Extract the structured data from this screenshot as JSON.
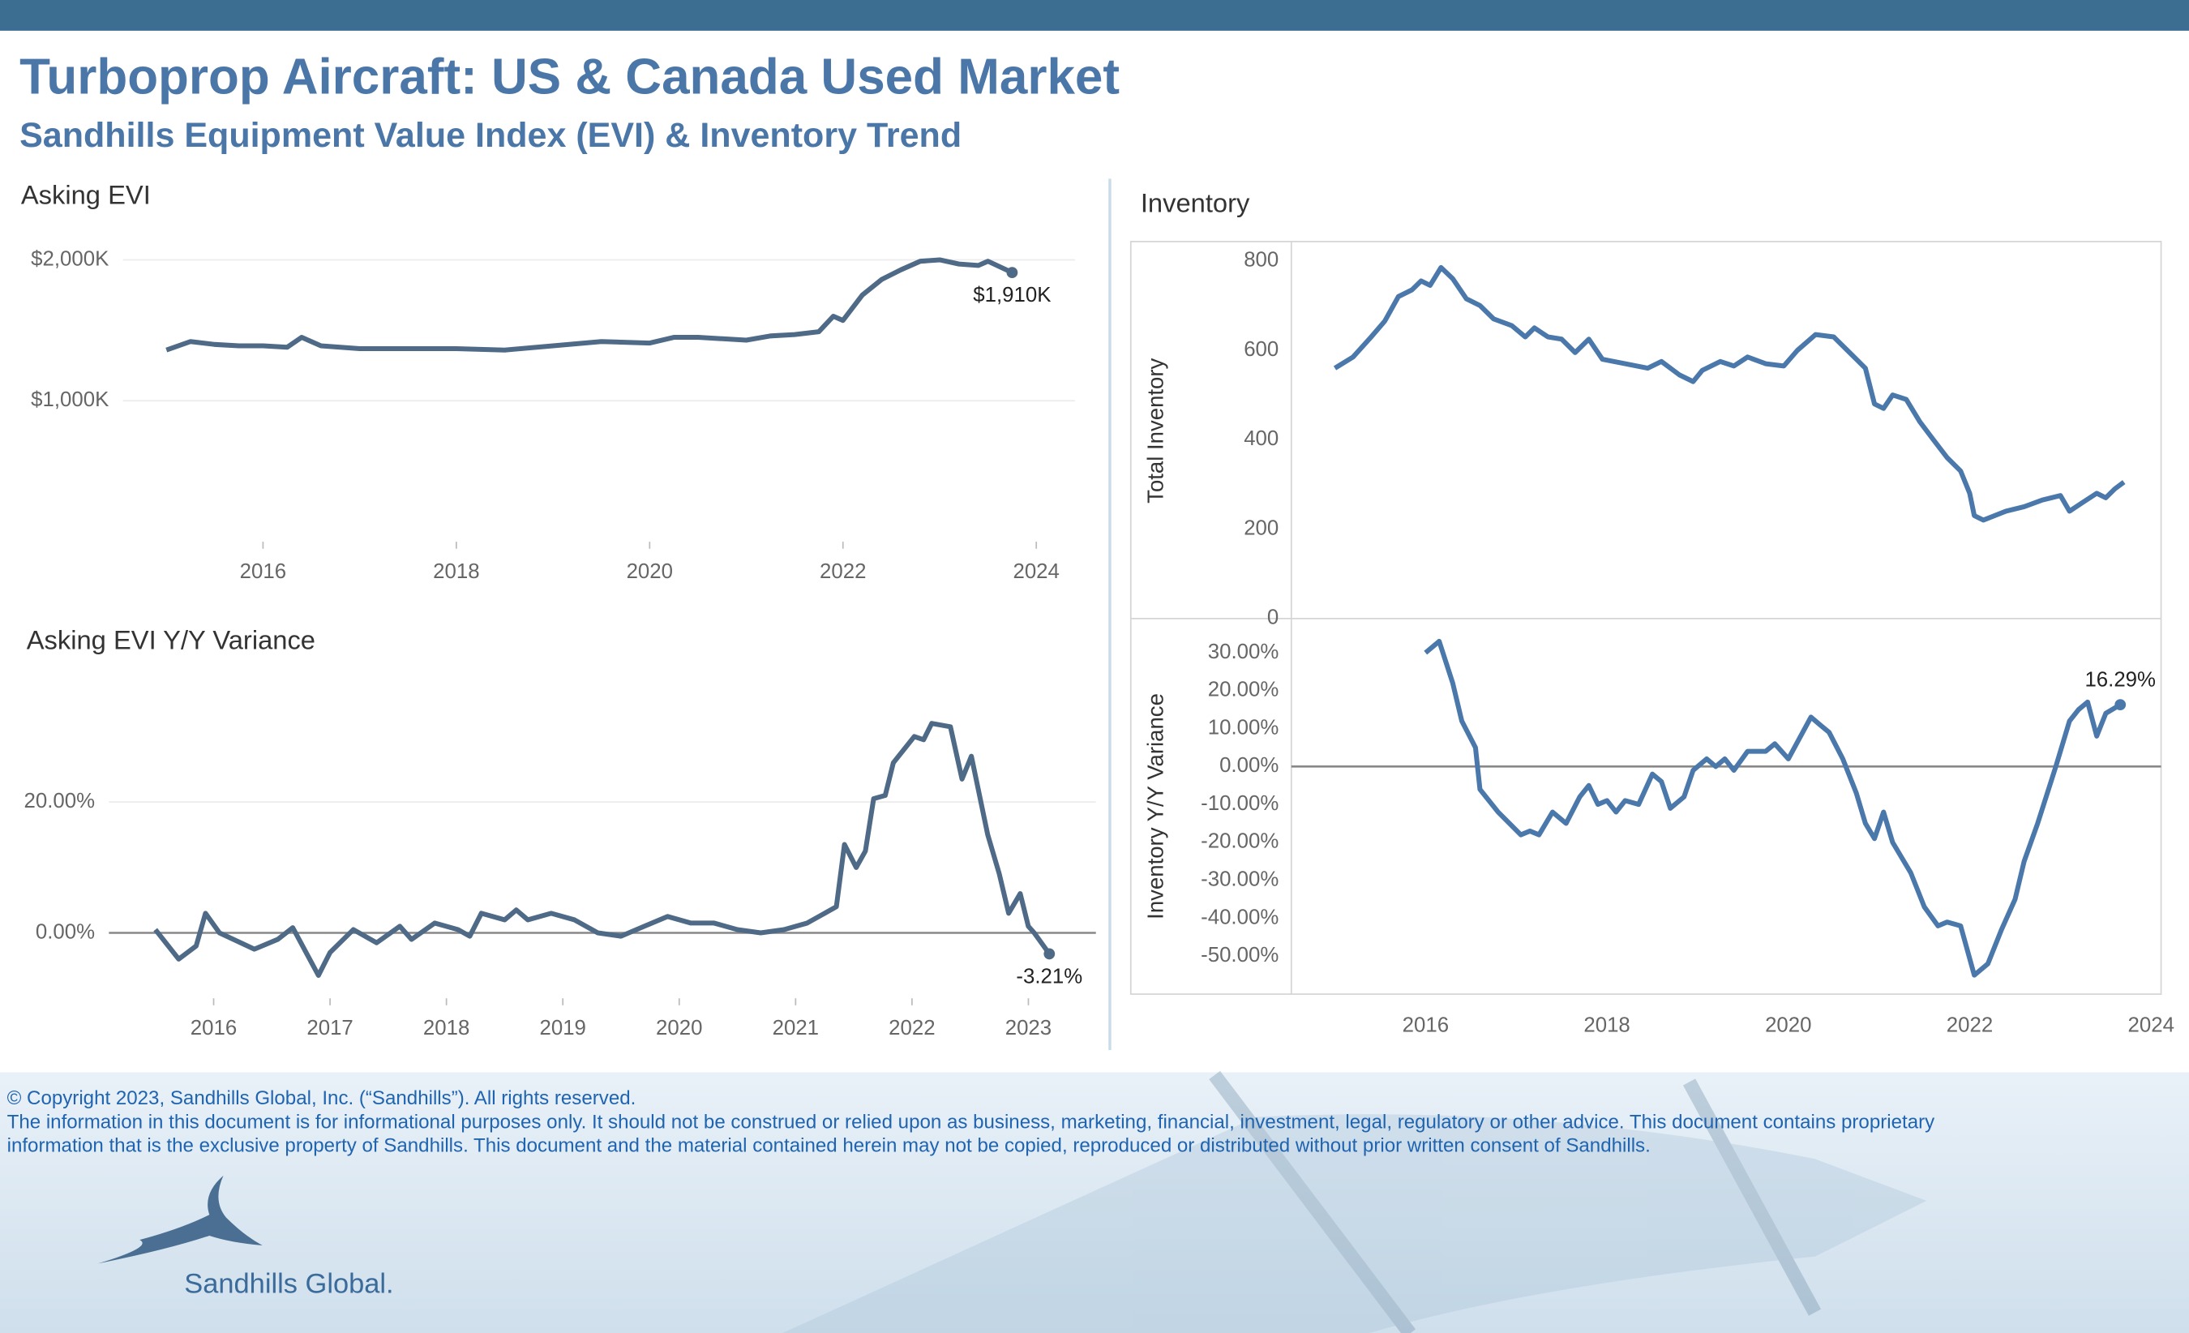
{
  "header": {
    "title": "Turboprop Aircraft:  US & Canada Used Market",
    "subtitle": "Sandhills Equipment Value Index (EVI) & Inventory Trend"
  },
  "chart_data": [
    {
      "type": "line",
      "title": "Asking EVI",
      "color": "#4e6a87",
      "grid": true,
      "x": [
        2015.0,
        2015.25,
        2015.5,
        2015.75,
        2016.0,
        2016.25,
        2016.4,
        2016.6,
        2017.0,
        2017.5,
        2018.0,
        2018.5,
        2019.0,
        2019.5,
        2020.0,
        2020.25,
        2020.5,
        2021.0,
        2021.25,
        2021.5,
        2021.75,
        2021.9,
        2022.0,
        2022.2,
        2022.4,
        2022.6,
        2022.8,
        2023.0,
        2023.2,
        2023.4,
        2023.5,
        2023.75
      ],
      "values": [
        1360,
        1420,
        1400,
        1390,
        1390,
        1380,
        1450,
        1390,
        1370,
        1370,
        1370,
        1360,
        1390,
        1420,
        1410,
        1450,
        1450,
        1430,
        1460,
        1470,
        1490,
        1600,
        1570,
        1750,
        1860,
        1930,
        1990,
        2000,
        1970,
        1960,
        1990,
        1910
      ],
      "value_labels": [
        null,
        null,
        null,
        null,
        null,
        null,
        null,
        null,
        null,
        null,
        null,
        null,
        null,
        null,
        null,
        null,
        null,
        null,
        null,
        null,
        null,
        null,
        null,
        null,
        null,
        null,
        null,
        null,
        null,
        null,
        null,
        "$1,910K"
      ],
      "xlim": [
        2014.55,
        2024.4
      ],
      "xticks": [
        2016,
        2018,
        2020,
        2022,
        2024
      ],
      "ylim": [
        0,
        2100
      ],
      "yticks": [
        {
          "value": 1000,
          "label": "$1,000K"
        },
        {
          "value": 2000,
          "label": "$2,000K"
        }
      ]
    },
    {
      "type": "line",
      "title": "Asking EVI Y/Y Variance",
      "color": "#4e6a87",
      "grid": true,
      "x": [
        2015.5,
        2015.7,
        2015.85,
        2015.93,
        2016.05,
        2016.35,
        2016.55,
        2016.68,
        2016.9,
        2017.0,
        2017.2,
        2017.4,
        2017.6,
        2017.7,
        2017.9,
        2018.1,
        2018.2,
        2018.3,
        2018.5,
        2018.6,
        2018.7,
        2018.9,
        2019.1,
        2019.3,
        2019.5,
        2019.7,
        2019.9,
        2020.1,
        2020.3,
        2020.5,
        2020.7,
        2020.9,
        2021.1,
        2021.35,
        2021.42,
        2021.52,
        2021.6,
        2021.67,
        2021.77,
        2021.84,
        2022.02,
        2022.1,
        2022.17,
        2022.33,
        2022.43,
        2022.51,
        2022.65,
        2022.75,
        2022.83,
        2022.93,
        2023.0,
        2023.05,
        2023.18
      ],
      "values": [
        0.5,
        -4,
        -2,
        3,
        0,
        -2.5,
        -1,
        0.8,
        -6.5,
        -3,
        0.5,
        -1.5,
        1,
        -1,
        1.5,
        0.5,
        -0.5,
        3,
        2,
        3.5,
        2,
        3,
        2,
        0,
        -0.5,
        1,
        2.5,
        1.5,
        1.5,
        0.5,
        0,
        0.5,
        1.5,
        4,
        13.5,
        10,
        12.5,
        20.5,
        21,
        26,
        30,
        29.5,
        32,
        31.5,
        23.5,
        27,
        15,
        9,
        3,
        6,
        1,
        0,
        -3.21
      ],
      "value_labels": [
        null,
        null,
        null,
        null,
        null,
        null,
        null,
        null,
        null,
        null,
        null,
        null,
        null,
        null,
        null,
        null,
        null,
        null,
        null,
        null,
        null,
        null,
        null,
        null,
        null,
        null,
        null,
        null,
        null,
        null,
        null,
        null,
        null,
        null,
        null,
        null,
        null,
        null,
        null,
        null,
        null,
        null,
        null,
        null,
        null,
        null,
        null,
        null,
        null,
        null,
        null,
        null,
        "-3.21%"
      ],
      "xlim": [
        2015.1,
        2023.58
      ],
      "xticks": [
        2016,
        2017,
        2018,
        2019,
        2020,
        2021,
        2022,
        2023
      ],
      "ylim": [
        -10,
        38
      ],
      "yticks": [
        {
          "value": 0,
          "label": "0.00%"
        },
        {
          "value": 20,
          "label": "20.00%"
        }
      ]
    },
    {
      "type": "line",
      "title": "Inventory",
      "y_label": "Total Inventory",
      "color": "#4a78ab",
      "grid": false,
      "x": [
        2015.0,
        2015.2,
        2015.4,
        2015.55,
        2015.7,
        2015.85,
        2015.95,
        2016.05,
        2016.17,
        2016.3,
        2016.45,
        2016.6,
        2016.75,
        2016.95,
        2017.1,
        2017.2,
        2017.35,
        2017.5,
        2017.65,
        2017.8,
        2017.95,
        2018.2,
        2018.45,
        2018.6,
        2018.8,
        2018.95,
        2019.05,
        2019.25,
        2019.4,
        2019.55,
        2019.75,
        2019.95,
        2020.1,
        2020.3,
        2020.5,
        2020.7,
        2020.85,
        2020.95,
        2021.05,
        2021.15,
        2021.3,
        2021.45,
        2021.6,
        2021.75,
        2021.9,
        2022.0,
        2022.05,
        2022.15,
        2022.4,
        2022.6,
        2022.8,
        2023.0,
        2023.1,
        2023.25,
        2023.4,
        2023.5,
        2023.6,
        2023.7
      ],
      "values": [
        560,
        585,
        630,
        665,
        720,
        735,
        755,
        745,
        785,
        760,
        715,
        700,
        670,
        655,
        630,
        650,
        630,
        625,
        595,
        625,
        580,
        570,
        560,
        575,
        545,
        530,
        555,
        575,
        565,
        585,
        570,
        565,
        600,
        635,
        630,
        590,
        560,
        480,
        470,
        500,
        490,
        440,
        400,
        360,
        330,
        280,
        230,
        220,
        240,
        250,
        265,
        275,
        240,
        260,
        280,
        270,
        290,
        305
      ],
      "xlim": [
        2014.52,
        2024.11
      ],
      "ylim": [
        0,
        840
      ],
      "yticks": [
        0,
        200,
        400,
        600,
        800
      ]
    },
    {
      "type": "line",
      "y_label": "Inventory  Y/Y Variance",
      "color": "#4a78ab",
      "grid": false,
      "x": [
        2016.0,
        2016.15,
        2016.3,
        2016.4,
        2016.55,
        2016.6,
        2016.8,
        2017.05,
        2017.15,
        2017.25,
        2017.4,
        2017.55,
        2017.7,
        2017.8,
        2017.9,
        2018.0,
        2018.1,
        2018.2,
        2018.35,
        2018.5,
        2018.6,
        2018.7,
        2018.85,
        2018.95,
        2019.1,
        2019.2,
        2019.3,
        2019.4,
        2019.55,
        2019.75,
        2019.85,
        2020.0,
        2020.25,
        2020.35,
        2020.45,
        2020.6,
        2020.75,
        2020.85,
        2020.95,
        2021.05,
        2021.15,
        2021.35,
        2021.5,
        2021.65,
        2021.75,
        2021.9,
        2022.05,
        2022.2,
        2022.35,
        2022.5,
        2022.6,
        2022.75,
        2022.95,
        2023.1,
        2023.2,
        2023.3,
        2023.4,
        2023.5,
        2023.66
      ],
      "values": [
        30,
        33,
        22,
        12,
        5,
        -6,
        -12,
        -18,
        -17,
        -18,
        -12,
        -15,
        -8,
        -5,
        -10,
        -9,
        -12,
        -9,
        -10,
        -2,
        -4,
        -11,
        -8,
        -1,
        2,
        0,
        2,
        -1,
        4,
        4,
        6,
        2,
        13,
        11,
        9,
        2,
        -7,
        -15,
        -19,
        -12,
        -20,
        -28,
        -37,
        -42,
        -41,
        -42,
        -55,
        -52,
        -43,
        -35,
        -25,
        -15,
        0,
        12,
        15,
        17,
        8,
        14,
        16.29
      ],
      "value_labels": [
        null,
        null,
        null,
        null,
        null,
        null,
        null,
        null,
        null,
        null,
        null,
        null,
        null,
        null,
        null,
        null,
        null,
        null,
        null,
        null,
        null,
        null,
        null,
        null,
        null,
        null,
        null,
        null,
        null,
        null,
        null,
        null,
        null,
        null,
        null,
        null,
        null,
        null,
        null,
        null,
        null,
        null,
        null,
        null,
        null,
        null,
        null,
        null,
        null,
        null,
        null,
        null,
        null,
        null,
        null,
        null,
        null,
        null,
        "16.29%"
      ],
      "xlim": [
        2014.52,
        2024.11
      ],
      "xticks": [
        2016,
        2018,
        2020,
        2022,
        2024
      ],
      "ylim": [
        -60,
        39
      ],
      "yticks": [
        {
          "value": 30,
          "label": "30.00%"
        },
        {
          "value": 20,
          "label": "20.00%"
        },
        {
          "value": 10,
          "label": "10.00%"
        },
        {
          "value": 0,
          "label": "0.00%"
        },
        {
          "value": -10,
          "label": "-10.00%"
        },
        {
          "value": -20,
          "label": "-20.00%"
        },
        {
          "value": -30,
          "label": "-30.00%"
        },
        {
          "value": -40,
          "label": "-40.00%"
        },
        {
          "value": -50,
          "label": "-50.00%"
        }
      ]
    }
  ],
  "footer": {
    "copyright": "© Copyright 2023, Sandhills Global, Inc. (“Sandhills”). All rights reserved.",
    "disclaimer": [
      "The information in this document is for informational purposes only.  It should not be construed or relied upon as business, marketing, financial, investment, legal, regulatory or other advice. This document contains proprietary",
      "information that is the exclusive property of Sandhills. This document and the material contained herein may not be copied, reproduced or distributed without prior written consent of Sandhills."
    ],
    "logo": "Sandhills Global."
  }
}
